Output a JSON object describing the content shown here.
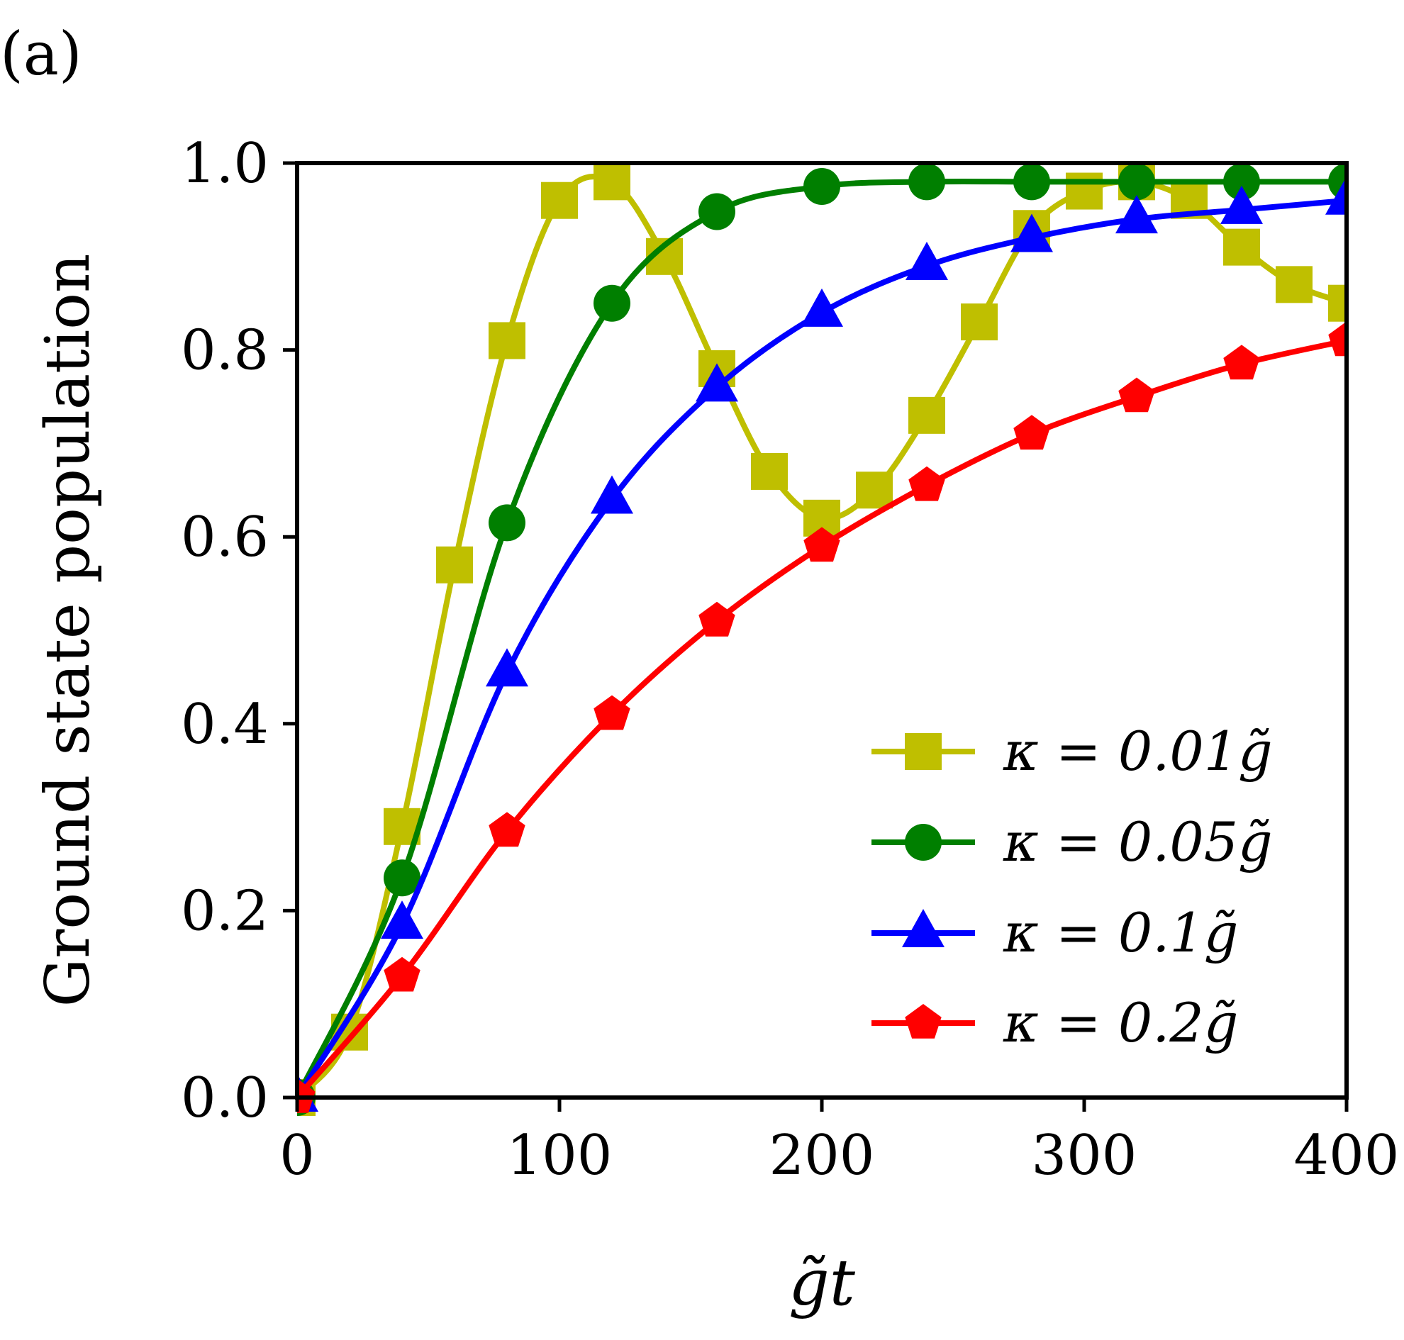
{
  "panel_label": "(a)",
  "chart_data": {
    "type": "line",
    "title": "",
    "xlabel": "g̃t",
    "ylabel": "Ground state population",
    "xlim": [
      0,
      400
    ],
    "ylim": [
      0.0,
      1.0
    ],
    "xticks": [
      0,
      100,
      200,
      300,
      400
    ],
    "yticks": [
      0.0,
      0.2,
      0.4,
      0.6,
      0.8,
      1.0
    ],
    "xtick_labels": [
      "0",
      "100",
      "200",
      "300",
      "400"
    ],
    "ytick_labels": [
      "0.0",
      "0.2",
      "0.4",
      "0.6",
      "0.8",
      "1.0"
    ],
    "grid": false,
    "legend_position": "lower-right",
    "series": [
      {
        "name": "κ = 0.01g̃",
        "color": "#bfbf00",
        "marker": "square",
        "marker_x": [
          0,
          20,
          40,
          60,
          80,
          100,
          120,
          140,
          160,
          180,
          200,
          220,
          240,
          260,
          280,
          300,
          320,
          340,
          360,
          380,
          400
        ],
        "marker_y": [
          0.0,
          0.07,
          0.29,
          0.57,
          0.81,
          0.96,
          0.98,
          0.9,
          0.78,
          0.67,
          0.62,
          0.65,
          0.73,
          0.83,
          0.93,
          0.97,
          0.98,
          0.96,
          0.91,
          0.87,
          0.85
        ]
      },
      {
        "name": "κ = 0.05g̃",
        "color": "#007f00",
        "marker": "circle",
        "marker_x": [
          0,
          40,
          80,
          120,
          160,
          200,
          240,
          280,
          320,
          360,
          400
        ],
        "marker_y": [
          0.0,
          0.235,
          0.615,
          0.85,
          0.948,
          0.975,
          0.98,
          0.98,
          0.98,
          0.98,
          0.98
        ]
      },
      {
        "name": "κ = 0.1g̃",
        "color": "#0000ff",
        "marker": "triangle",
        "marker_x": [
          0,
          40,
          80,
          120,
          160,
          200,
          240,
          280,
          320,
          360,
          400
        ],
        "marker_y": [
          0.0,
          0.185,
          0.455,
          0.64,
          0.76,
          0.84,
          0.89,
          0.92,
          0.94,
          0.95,
          0.96
        ]
      },
      {
        "name": "κ = 0.2g̃",
        "color": "#ff0000",
        "marker": "pentagon",
        "marker_x": [
          0,
          40,
          80,
          120,
          160,
          200,
          240,
          280,
          320,
          360,
          400
        ],
        "marker_y": [
          0.0,
          0.13,
          0.285,
          0.41,
          0.51,
          0.59,
          0.655,
          0.71,
          0.75,
          0.785,
          0.81
        ]
      }
    ]
  }
}
